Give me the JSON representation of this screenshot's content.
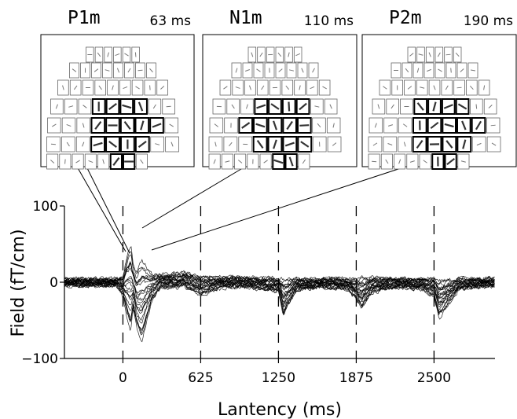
{
  "panels": [
    {
      "component": "P1m",
      "latency": "63 ms"
    },
    {
      "component": "N1m",
      "latency": "110 ms"
    },
    {
      "component": "P2m",
      "latency": "190 ms"
    }
  ],
  "chart_data": {
    "type": "line",
    "xlabel": "Lantency (ms)",
    "ylabel": "Field (fT/cm)",
    "xlim": [
      -470,
      2990
    ],
    "ylim": [
      -100,
      100
    ],
    "x_ticks": [
      0,
      625,
      1250,
      1875,
      2500
    ],
    "y_ticks": [
      100,
      0,
      -100
    ],
    "x_tick_labels": [
      "0",
      "625",
      "1250",
      "1875",
      "2500"
    ],
    "y_tick_labels": [
      "100",
      "0",
      "−100"
    ],
    "dashed_vertical_lines_at": [
      0,
      625,
      1250,
      1875,
      2500
    ],
    "grid": false,
    "legend": "none",
    "num_channels": 24,
    "peaks_ms": [
      63,
      110,
      190
    ],
    "envelope": {
      "x": [
        -470,
        -50,
        0,
        30,
        63,
        80,
        110,
        150,
        190,
        230,
        300,
        500,
        625,
        800,
        1000,
        1250,
        1290,
        1400,
        1600,
        1800,
        1875,
        1920,
        2000,
        2200,
        2400,
        2500,
        2540,
        2700,
        2990
      ],
      "upper": [
        6,
        6,
        10,
        40,
        62,
        30,
        20,
        40,
        28,
        15,
        12,
        14,
        10,
        8,
        8,
        6,
        8,
        6,
        6,
        6,
        6,
        10,
        8,
        6,
        6,
        8,
        6,
        6,
        6
      ],
      "lower": [
        -6,
        -6,
        -20,
        -50,
        -75,
        -40,
        -65,
        -90,
        -60,
        -30,
        -10,
        -8,
        -20,
        -8,
        -8,
        -14,
        -48,
        -12,
        -8,
        -10,
        -25,
        -40,
        -15,
        -8,
        -10,
        -20,
        -52,
        -10,
        -6
      ]
    }
  }
}
